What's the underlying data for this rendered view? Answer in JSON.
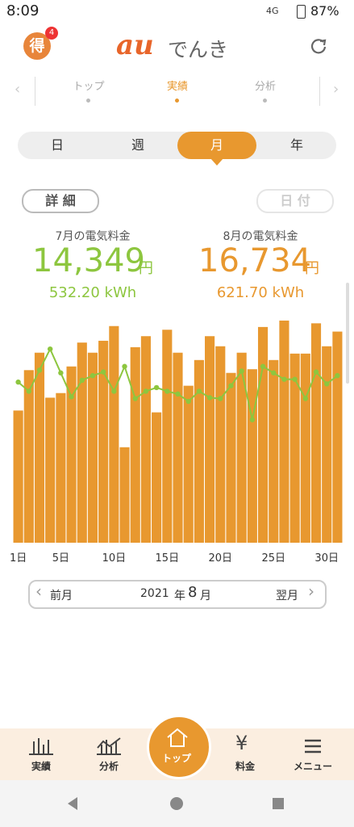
{
  "status_bar": {
    "time": "8:09",
    "network": "4G",
    "battery": "87%"
  },
  "header": {
    "badge_icon": "得",
    "badge_count": "4",
    "logo_au": "au",
    "logo_text": "でんき"
  },
  "top_tabs": [
    "トップ",
    "実績",
    "分析"
  ],
  "period_tabs": [
    "日",
    "週",
    "月",
    "年"
  ],
  "buttons": {
    "detail": "詳 細",
    "date": "日 付"
  },
  "summary": [
    {
      "label": "7月の電気料金",
      "amount": "14,349",
      "unit": "円",
      "usage": "532.20 kWh"
    },
    {
      "label": "8月の電気料金",
      "amount": "16,734",
      "unit": "円",
      "usage": "621.70 kWh"
    }
  ],
  "chart_data": {
    "type": "bar",
    "categories": [
      "1日",
      null,
      null,
      null,
      "5日",
      null,
      null,
      null,
      null,
      "10日",
      null,
      null,
      null,
      null,
      "15日",
      null,
      null,
      null,
      null,
      "20日",
      null,
      null,
      null,
      null,
      "25日",
      null,
      null,
      null,
      null,
      "30日",
      null
    ],
    "series": [
      {
        "color": "#e8982f",
        "type": "bar",
        "values": [
          14.4,
          18.8,
          20.7,
          15.8,
          16.3,
          19.2,
          21.8,
          20.7,
          22.0,
          23.6,
          10.4,
          21.3,
          22.5,
          14.2,
          23.2,
          20.7,
          17.1,
          19.9,
          22.5,
          21.4,
          18.5,
          20.7,
          18.9,
          23.5,
          19.9,
          24.2,
          20.6,
          20.6,
          23.9,
          21.4,
          23.0
        ]
      },
      {
        "color": "#8dc63f",
        "type": "line",
        "values": [
          17.5,
          16.5,
          18.8,
          21.1,
          18.5,
          15.9,
          17.7,
          18.2,
          18.6,
          16.5,
          19.2,
          15.7,
          16.5,
          16.9,
          16.5,
          16.2,
          15.4,
          16.5,
          15.8,
          15.7,
          17.1,
          18.7,
          13.4,
          19.2,
          18.5,
          17.8,
          17.8,
          15.7,
          18.6,
          17.3,
          18.2
        ]
      }
    ],
    "ylim": [
      0,
      30
    ]
  },
  "month_nav": {
    "prev": "前月",
    "year": "2021",
    "year_unit": "年",
    "month": "8",
    "month_unit": "月",
    "next": "翌月"
  },
  "bottom_nav": [
    "実績",
    "分析",
    "トップ",
    "料金",
    "メニュー"
  ]
}
